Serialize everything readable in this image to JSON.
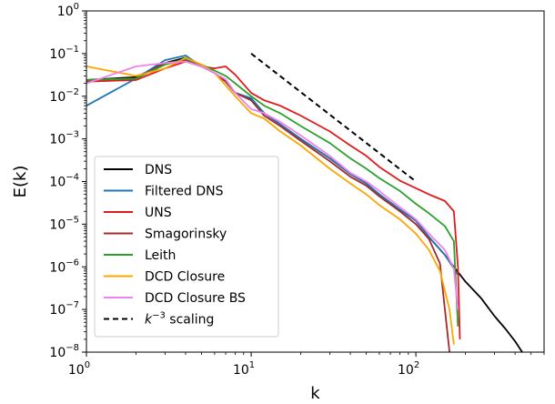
{
  "chart_data": {
    "type": "line",
    "xscale": "log",
    "yscale": "log",
    "xlim": [
      1,
      600
    ],
    "ylim": [
      1e-08,
      1
    ],
    "xlabel": "k",
    "ylabel": "E(k)",
    "x_ticks": [
      {
        "value": 1,
        "base": "10",
        "exp": "0"
      },
      {
        "value": 10,
        "base": "10",
        "exp": "1"
      },
      {
        "value": 100,
        "base": "10",
        "exp": "2"
      }
    ],
    "y_ticks": [
      {
        "value": 1,
        "base": "10",
        "exp": "0"
      },
      {
        "value": 0.1,
        "base": "10",
        "exp": "−1"
      },
      {
        "value": 0.01,
        "base": "10",
        "exp": "−2"
      },
      {
        "value": 0.001,
        "base": "10",
        "exp": "−3"
      },
      {
        "value": 0.0001,
        "base": "10",
        "exp": "−4"
      },
      {
        "value": 1e-05,
        "base": "10",
        "exp": "−5"
      },
      {
        "value": 1e-06,
        "base": "10",
        "exp": "−6"
      },
      {
        "value": 1e-07,
        "base": "10",
        "exp": "−7"
      },
      {
        "value": 1e-08,
        "base": "10",
        "exp": "−8"
      }
    ],
    "legend_position": "lower-left",
    "series": [
      {
        "name": "DNS",
        "color": "#000000",
        "style": "solid",
        "points": [
          [
            1,
            0.024
          ],
          [
            2,
            0.028
          ],
          [
            3,
            0.06
          ],
          [
            4,
            0.08
          ],
          [
            5,
            0.05
          ],
          [
            6,
            0.035
          ],
          [
            7,
            0.022
          ],
          [
            8,
            0.012
          ],
          [
            10,
            0.0085
          ],
          [
            12,
            0.004
          ],
          [
            15,
            0.0022
          ],
          [
            20,
            0.001
          ],
          [
            30,
            0.00035
          ],
          [
            40,
            0.00015
          ],
          [
            50,
            9e-05
          ],
          [
            60,
            5e-05
          ],
          [
            80,
            2.2e-05
          ],
          [
            100,
            1.2e-05
          ],
          [
            120,
            5e-06
          ],
          [
            150,
            1.9e-06
          ],
          [
            180,
            7.5e-07
          ],
          [
            200,
            4.5e-07
          ],
          [
            250,
            1.8e-07
          ],
          [
            300,
            7e-08
          ],
          [
            350,
            3.5e-08
          ],
          [
            400,
            1.8e-08
          ],
          [
            450,
            9e-09
          ],
          [
            500,
            3.5e-09
          ]
        ]
      },
      {
        "name": "Filtered DNS",
        "color": "#1f77b4",
        "style": "solid",
        "points": [
          [
            1,
            0.006
          ],
          [
            2,
            0.026
          ],
          [
            3,
            0.07
          ],
          [
            4,
            0.09
          ],
          [
            5,
            0.05
          ],
          [
            6,
            0.035
          ],
          [
            7,
            0.022
          ],
          [
            8,
            0.012
          ],
          [
            10,
            0.009
          ],
          [
            12,
            0.004
          ],
          [
            15,
            0.0022
          ],
          [
            20,
            0.001
          ],
          [
            30,
            0.00035
          ],
          [
            40,
            0.00015
          ],
          [
            50,
            9e-05
          ],
          [
            60,
            5e-05
          ],
          [
            80,
            2.2e-05
          ],
          [
            100,
            1.2e-05
          ],
          [
            120,
            5e-06
          ],
          [
            150,
            1.9e-06
          ],
          [
            170,
            9e-07
          ],
          [
            180,
            6.5e-07
          ]
        ]
      },
      {
        "name": "UNS",
        "color": "#e31a1c",
        "style": "solid",
        "points": [
          [
            1,
            0.022
          ],
          [
            2,
            0.024
          ],
          [
            3,
            0.045
          ],
          [
            4,
            0.065
          ],
          [
            5,
            0.05
          ],
          [
            6,
            0.045
          ],
          [
            7,
            0.05
          ],
          [
            8,
            0.032
          ],
          [
            10,
            0.012
          ],
          [
            12,
            0.008
          ],
          [
            15,
            0.006
          ],
          [
            20,
            0.0035
          ],
          [
            30,
            0.0015
          ],
          [
            40,
            0.0007
          ],
          [
            50,
            0.0004
          ],
          [
            60,
            0.00022
          ],
          [
            80,
            0.000105
          ],
          [
            100,
            7e-05
          ],
          [
            120,
            5e-05
          ],
          [
            150,
            3.5e-05
          ],
          [
            170,
            2e-05
          ],
          [
            180,
            1e-06
          ],
          [
            185,
            2e-08
          ]
        ]
      },
      {
        "name": "Smagorinsky",
        "color": "#a52a2a",
        "style": "solid",
        "points": [
          [
            1,
            0.024
          ],
          [
            2,
            0.026
          ],
          [
            3,
            0.06
          ],
          [
            4,
            0.07
          ],
          [
            5,
            0.05
          ],
          [
            6,
            0.035
          ],
          [
            7,
            0.022
          ],
          [
            8,
            0.012
          ],
          [
            10,
            0.008
          ],
          [
            12,
            0.0035
          ],
          [
            15,
            0.002
          ],
          [
            20,
            0.0009
          ],
          [
            30,
            0.0003
          ],
          [
            40,
            0.00013
          ],
          [
            50,
            8e-05
          ],
          [
            60,
            4.5e-05
          ],
          [
            80,
            2e-05
          ],
          [
            100,
            1e-05
          ],
          [
            120,
            4.5e-06
          ],
          [
            140,
            1.2e-06
          ],
          [
            150,
            1e-07
          ],
          [
            160,
            1e-08
          ]
        ]
      },
      {
        "name": "Leith",
        "color": "#2ca02c",
        "style": "solid",
        "points": [
          [
            1,
            0.024
          ],
          [
            2,
            0.026
          ],
          [
            3,
            0.055
          ],
          [
            4,
            0.075
          ],
          [
            5,
            0.055
          ],
          [
            6,
            0.04
          ],
          [
            7,
            0.03
          ],
          [
            8,
            0.02
          ],
          [
            10,
            0.01
          ],
          [
            12,
            0.006
          ],
          [
            15,
            0.004
          ],
          [
            20,
            0.002
          ],
          [
            30,
            0.0008
          ],
          [
            40,
            0.00035
          ],
          [
            50,
            0.0002
          ],
          [
            60,
            0.00012
          ],
          [
            80,
            6e-05
          ],
          [
            100,
            3e-05
          ],
          [
            120,
            1.8e-05
          ],
          [
            150,
            9e-06
          ],
          [
            170,
            4e-06
          ],
          [
            180,
            4e-08
          ]
        ]
      },
      {
        "name": "DCD Closure",
        "color": "#ffa500",
        "style": "solid",
        "points": [
          [
            1,
            0.05
          ],
          [
            2,
            0.03
          ],
          [
            3,
            0.045
          ],
          [
            4,
            0.08
          ],
          [
            5,
            0.055
          ],
          [
            6,
            0.035
          ],
          [
            7,
            0.018
          ],
          [
            8,
            0.01
          ],
          [
            10,
            0.004
          ],
          [
            12,
            0.003
          ],
          [
            15,
            0.0015
          ],
          [
            20,
            0.0007
          ],
          [
            30,
            0.0002
          ],
          [
            40,
            9e-05
          ],
          [
            50,
            5e-05
          ],
          [
            60,
            2.8e-05
          ],
          [
            80,
            1.3e-05
          ],
          [
            100,
            6e-06
          ],
          [
            120,
            2.5e-06
          ],
          [
            140,
            8e-07
          ],
          [
            160,
            1e-07
          ],
          [
            170,
            1.5e-08
          ]
        ]
      },
      {
        "name": "DCD Closure BS",
        "color": "#ee82ee",
        "style": "solid",
        "points": [
          [
            1,
            0.02
          ],
          [
            2,
            0.05
          ],
          [
            3,
            0.06
          ],
          [
            4,
            0.065
          ],
          [
            5,
            0.05
          ],
          [
            6,
            0.035
          ],
          [
            7,
            0.025
          ],
          [
            8,
            0.012
          ],
          [
            10,
            0.005
          ],
          [
            12,
            0.004
          ],
          [
            15,
            0.0025
          ],
          [
            20,
            0.0012
          ],
          [
            30,
            0.0004
          ],
          [
            40,
            0.00016
          ],
          [
            50,
            0.0001
          ],
          [
            60,
            6e-05
          ],
          [
            80,
            2.5e-05
          ],
          [
            100,
            1.3e-05
          ],
          [
            120,
            6e-06
          ],
          [
            150,
            2.5e-06
          ],
          [
            170,
            9e-07
          ],
          [
            180,
            1e-07
          ]
        ]
      },
      {
        "name": "k^{-3} scaling",
        "legend_label_main": "k",
        "legend_label_exp": "−3",
        "legend_label_suffix": " scaling",
        "color": "#000000",
        "style": "dashed",
        "points": [
          [
            10,
            0.1
          ],
          [
            100,
            0.0001
          ]
        ]
      }
    ]
  }
}
